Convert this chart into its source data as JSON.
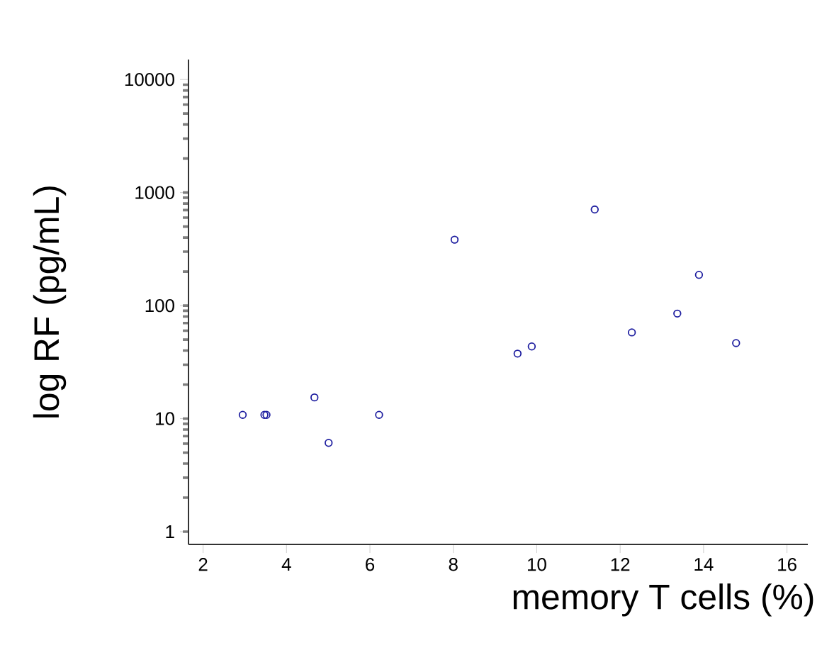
{
  "chart_data": {
    "type": "scatter",
    "xlabel": "memory T cells (%)",
    "ylabel": "log RF (pg/mL)",
    "log": "y",
    "marker": "circle",
    "xlim": [
      1.65,
      16.5
    ],
    "xticks": [
      2,
      4,
      6,
      8,
      10,
      12,
      14,
      16
    ],
    "ylim": [
      0.77,
      15000
    ],
    "yticks": [
      1,
      10,
      100,
      1000,
      10000
    ],
    "series": [
      {
        "color": "#1f1fa0",
        "x": [
          2.95,
          3.47,
          3.52,
          4.67,
          5.01,
          6.22,
          8.03,
          9.54,
          9.88,
          11.39,
          12.28,
          13.37,
          13.89,
          14.78
        ],
        "values": [
          10.8,
          10.8,
          10.8,
          15.4,
          6.1,
          10.8,
          383,
          37.6,
          43.5,
          708,
          57.9,
          85,
          187,
          46.6
        ]
      }
    ]
  }
}
